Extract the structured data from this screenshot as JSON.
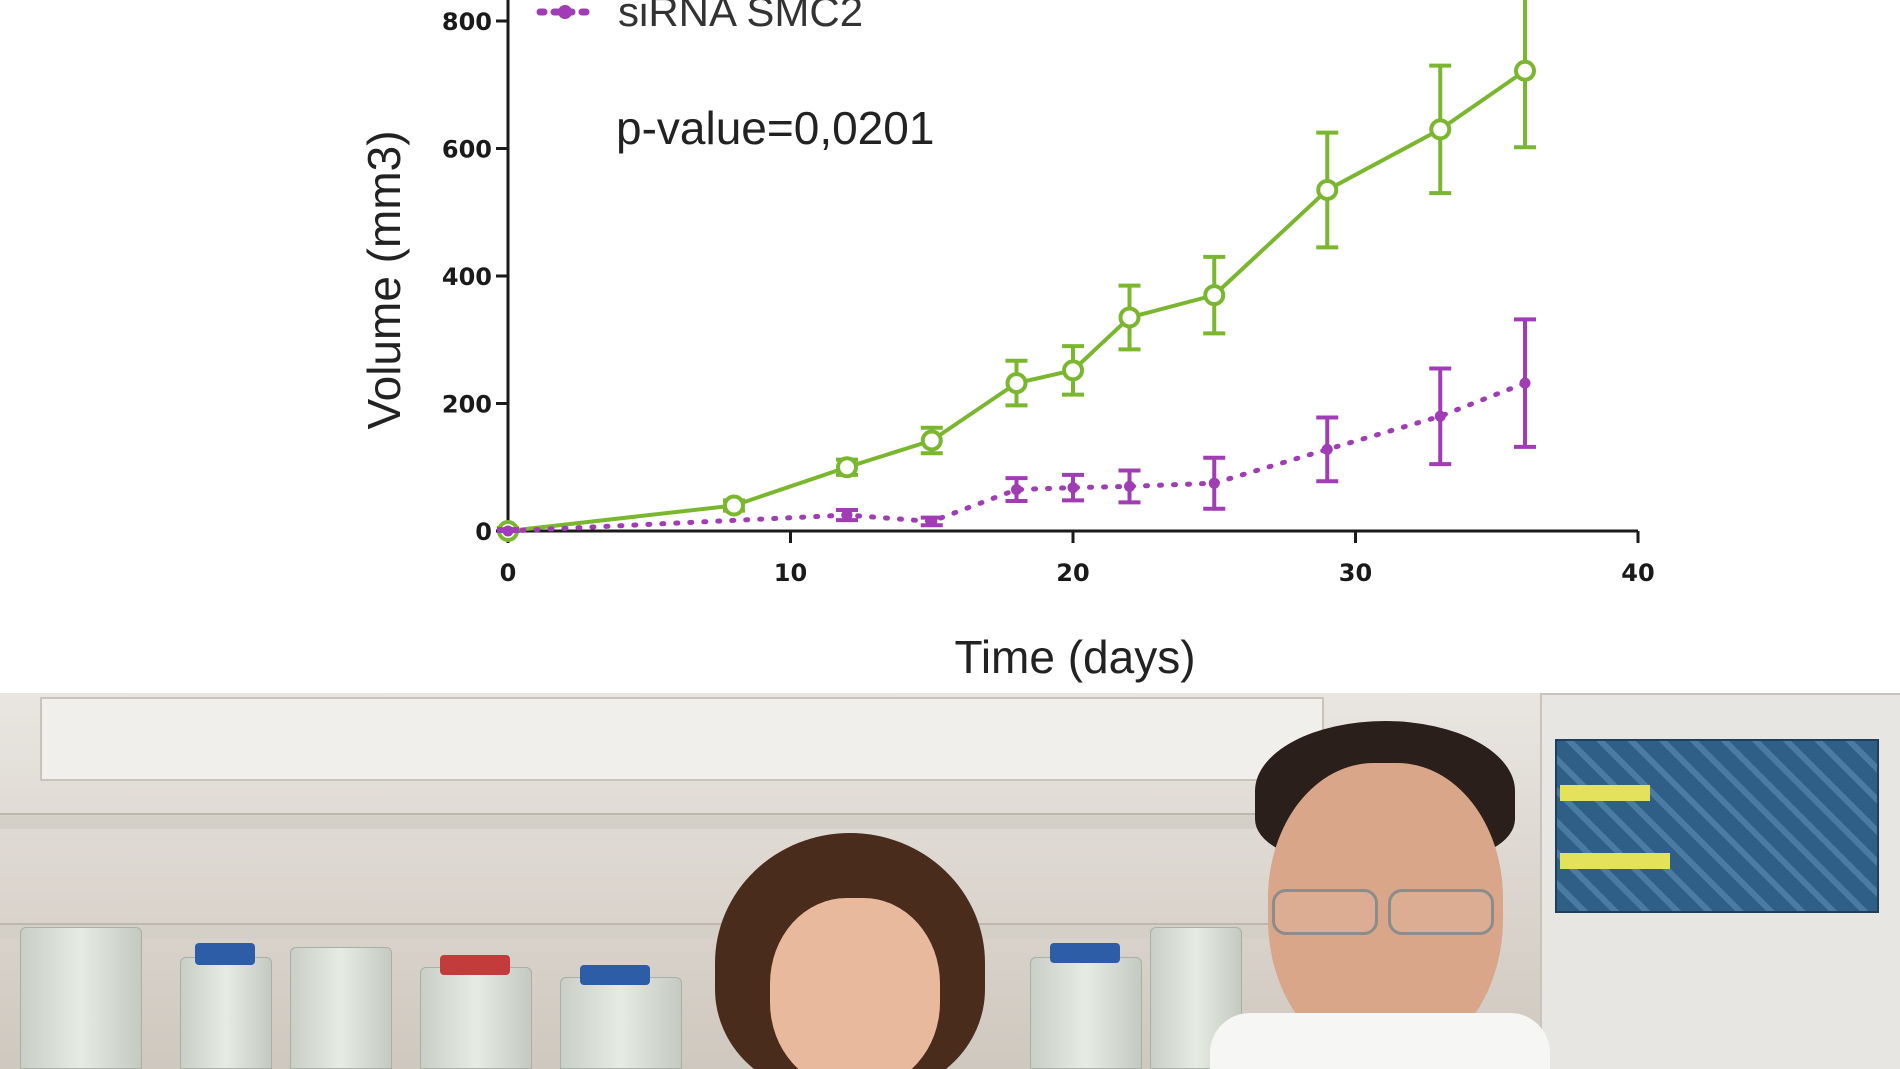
{
  "chart_data": {
    "type": "line",
    "title": "",
    "xlabel": "Time (days)",
    "ylabel": "Volume (mm3)",
    "xlim": [
      0,
      40
    ],
    "ylim": [
      0,
      800
    ],
    "x_ticks": [
      0,
      10,
      20,
      30,
      40
    ],
    "y_ticks": [
      0,
      200,
      400,
      600,
      800
    ],
    "annotation": "p-value=0,0201",
    "legend_position": "top-left",
    "grid": false,
    "series": [
      {
        "name": "",
        "color": "#7ab72f",
        "line_style": "solid",
        "marker": "open-circle",
        "x": [
          0,
          8,
          12,
          15,
          18,
          20,
          22,
          25,
          29,
          33,
          36
        ],
        "y": [
          0,
          40,
          100,
          142,
          232,
          252,
          335,
          370,
          535,
          630,
          722
        ],
        "error": [
          5,
          8,
          12,
          20,
          35,
          38,
          50,
          60,
          90,
          100,
          120
        ]
      },
      {
        "name": "siRNA SMC2",
        "color": "#a03cb4",
        "line_style": "dotted",
        "marker": "filled-circle",
        "x": [
          0,
          12,
          15,
          18,
          20,
          22,
          25,
          29,
          33,
          36
        ],
        "y": [
          0,
          25,
          15,
          65,
          68,
          70,
          75,
          128,
          180,
          232
        ],
        "error": [
          3,
          8,
          6,
          18,
          20,
          25,
          40,
          50,
          75,
          100
        ]
      }
    ]
  },
  "photo": {
    "description_icon": "lab-photo-icon"
  }
}
